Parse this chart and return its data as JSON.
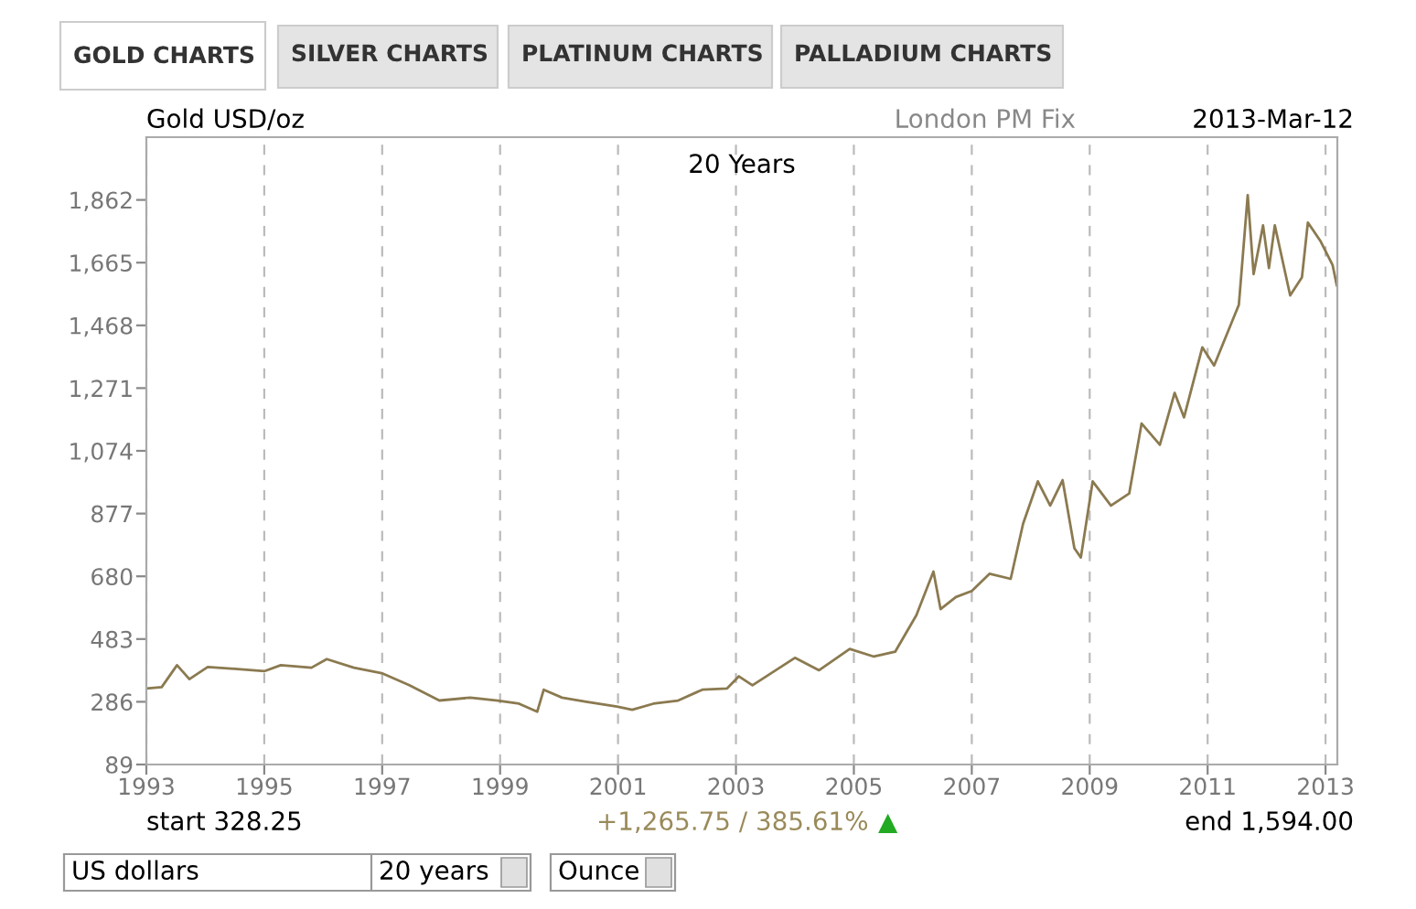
{
  "chart_data": {
    "type": "line",
    "title": "20 Years",
    "ylabel": "Gold USD/oz",
    "x": [
      1993.0,
      1993.26,
      1993.52,
      1993.73,
      1994.04,
      1994.55,
      1995.0,
      1995.28,
      1995.8,
      1996.06,
      1996.52,
      1996.99,
      1997.46,
      1997.97,
      1998.49,
      1998.96,
      1999.32,
      1999.63,
      1999.74,
      2000.05,
      2000.46,
      2000.98,
      2001.24,
      2001.6,
      2002.02,
      2002.43,
      2002.85,
      2003.05,
      2003.28,
      2004.0,
      2004.41,
      2004.93,
      2005.34,
      2005.7,
      2006.06,
      2006.35,
      2006.47,
      2006.73,
      2007.0,
      2007.3,
      2007.66,
      2007.87,
      2008.12,
      2008.33,
      2008.54,
      2008.74,
      2008.85,
      2009.05,
      2009.36,
      2009.67,
      2009.88,
      2010.19,
      2010.44,
      2010.6,
      2010.91,
      2011.11,
      2011.53,
      2011.68,
      2011.78,
      2011.94,
      2012.04,
      2012.14,
      2012.4,
      2012.6,
      2012.7,
      2012.91,
      2013.12,
      2013.19
    ],
    "series": [
      {
        "color": "#8b7a50",
        "values": [
          328,
          332,
          401,
          357,
          395,
          389,
          382,
          401,
          393,
          420,
          393,
          376,
          338,
          290,
          299,
          290,
          280,
          255,
          324,
          299,
          286,
          271,
          261,
          280,
          290,
          324,
          328,
          366,
          338,
          424,
          385,
          452,
          428,
          443,
          558,
          695,
          577,
          615,
          634,
          688,
          672,
          845,
          978,
          902,
          982,
          768,
          739,
          978,
          902,
          940,
          1160,
          1093,
          1256,
          1179,
          1399,
          1342,
          1533,
          1877,
          1629,
          1782,
          1648,
          1782,
          1562,
          1619,
          1791,
          1734,
          1657,
          1594
        ]
      }
    ],
    "xlim": [
      1993,
      2013.2
    ],
    "xticks": [
      1993,
      1995,
      1997,
      1999,
      2001,
      2003,
      2005,
      2007,
      2009,
      2011,
      2013
    ],
    "ylim": [
      89,
      2059
    ],
    "yticks": [
      {
        "value": 89,
        "label": "89"
      },
      {
        "value": 286,
        "label": "286"
      },
      {
        "value": 483,
        "label": "483"
      },
      {
        "value": 680,
        "label": "680"
      },
      {
        "value": 877,
        "label": "877"
      },
      {
        "value": 1074,
        "label": "1,074"
      },
      {
        "value": 1271,
        "label": "1,271"
      },
      {
        "value": 1468,
        "label": "1,468"
      },
      {
        "value": 1665,
        "label": "1,665"
      },
      {
        "value": 1862,
        "label": "1,862"
      }
    ],
    "grid": "x",
    "legend": false,
    "marker": "none",
    "line_style": "solid",
    "annotations": [
      "GOLD CHARTS",
      "SILVER CHARTS",
      "PLATINUM CHARTS",
      "PALLADIUM CHARTS",
      "London PM Fix",
      "2013-Mar-12",
      "start 328.25",
      "+1,265.75 / 385.61%",
      "▲",
      "end 1,594.00",
      "US dollars",
      "20 years",
      "Ounce"
    ]
  }
}
